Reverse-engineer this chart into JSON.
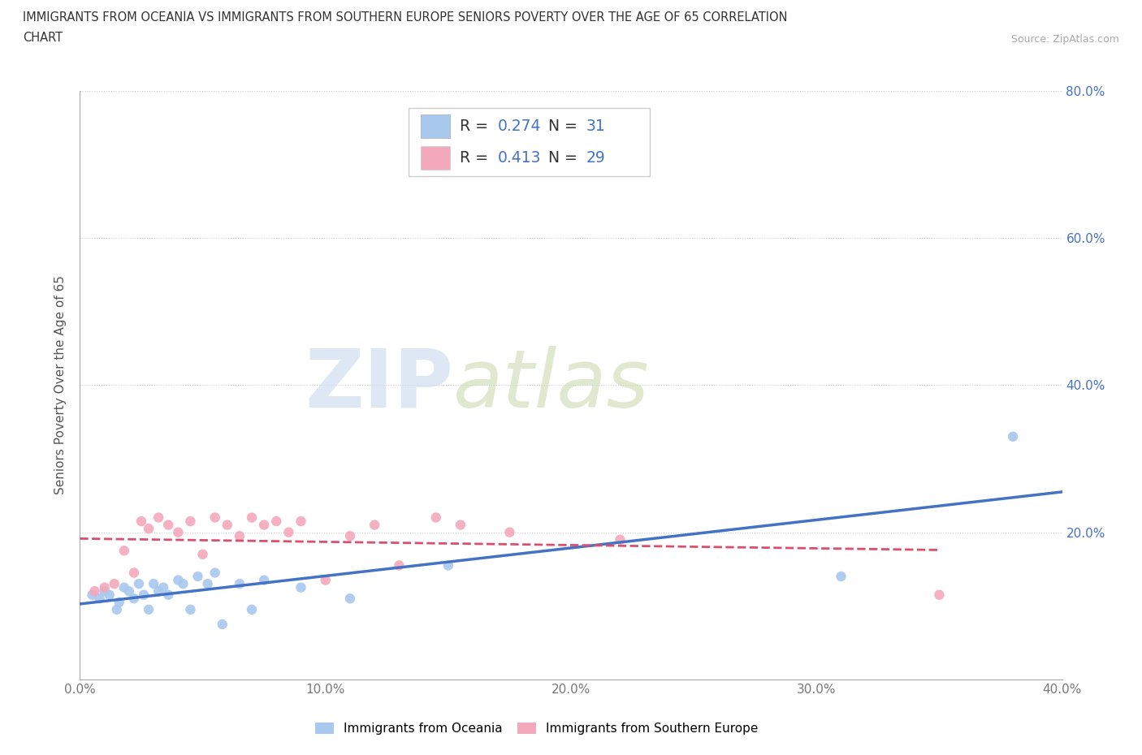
{
  "title_line1": "IMMIGRANTS FROM OCEANIA VS IMMIGRANTS FROM SOUTHERN EUROPE SENIORS POVERTY OVER THE AGE OF 65 CORRELATION",
  "title_line2": "CHART",
  "source_text": "Source: ZipAtlas.com",
  "ylabel": "Seniors Poverty Over the Age of 65",
  "xlim": [
    0.0,
    0.4
  ],
  "ylim": [
    0.0,
    0.8
  ],
  "xticks": [
    0.0,
    0.1,
    0.2,
    0.3,
    0.4
  ],
  "yticks": [
    0.0,
    0.2,
    0.4,
    0.6,
    0.8
  ],
  "xtick_labels": [
    "0.0%",
    "10.0%",
    "20.0%",
    "30.0%",
    "40.0%"
  ],
  "ytick_labels_left": [
    "",
    "",
    "",
    "",
    ""
  ],
  "ytick_labels_right": [
    "",
    "20.0%",
    "40.0%",
    "60.0%",
    "80.0%"
  ],
  "R_oceania": 0.274,
  "N_oceania": 31,
  "R_southern": 0.413,
  "N_southern": 29,
  "legend_label_oceania": "Immigrants from Oceania",
  "legend_label_southern": "Immigrants from Southern Europe",
  "color_oceania": "#a8c8ee",
  "color_southern": "#f4a8bc",
  "line_color_oceania": "#4472c4",
  "line_color_southern": "#d94f6e",
  "text_color_blue": "#4472c4",
  "watermark_zip": "ZIP",
  "watermark_atlas": "atlas",
  "background_color": "#ffffff",
  "oceania_scatter_x": [
    0.005,
    0.008,
    0.01,
    0.012,
    0.015,
    0.016,
    0.018,
    0.02,
    0.022,
    0.024,
    0.026,
    0.028,
    0.03,
    0.032,
    0.034,
    0.036,
    0.04,
    0.042,
    0.045,
    0.048,
    0.052,
    0.055,
    0.058,
    0.065,
    0.07,
    0.075,
    0.09,
    0.11,
    0.15,
    0.31,
    0.38
  ],
  "oceania_scatter_y": [
    0.115,
    0.11,
    0.12,
    0.115,
    0.095,
    0.105,
    0.125,
    0.12,
    0.11,
    0.13,
    0.115,
    0.095,
    0.13,
    0.12,
    0.125,
    0.115,
    0.135,
    0.13,
    0.095,
    0.14,
    0.13,
    0.145,
    0.075,
    0.13,
    0.095,
    0.135,
    0.125,
    0.11,
    0.155,
    0.14,
    0.33
  ],
  "southern_scatter_x": [
    0.006,
    0.01,
    0.014,
    0.018,
    0.022,
    0.025,
    0.028,
    0.032,
    0.036,
    0.04,
    0.045,
    0.05,
    0.055,
    0.06,
    0.065,
    0.07,
    0.075,
    0.08,
    0.085,
    0.09,
    0.1,
    0.11,
    0.12,
    0.13,
    0.145,
    0.155,
    0.175,
    0.22,
    0.35
  ],
  "southern_scatter_y": [
    0.12,
    0.125,
    0.13,
    0.175,
    0.145,
    0.215,
    0.205,
    0.22,
    0.21,
    0.2,
    0.215,
    0.17,
    0.22,
    0.21,
    0.195,
    0.22,
    0.21,
    0.215,
    0.2,
    0.215,
    0.135,
    0.195,
    0.21,
    0.155,
    0.22,
    0.21,
    0.2,
    0.19,
    0.115
  ]
}
